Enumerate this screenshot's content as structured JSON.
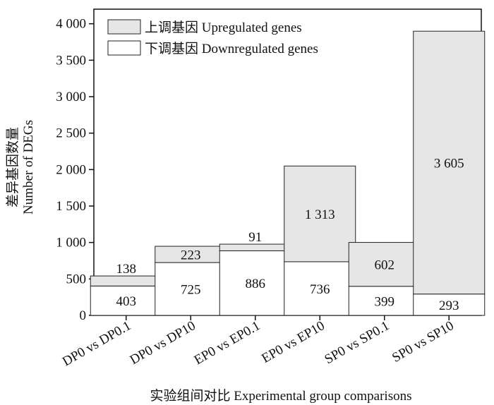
{
  "chart_data": {
    "type": "bar",
    "stacked": true,
    "categories": [
      "DP0 vs DP0.1",
      "DP0 vs DP10",
      "EP0 vs EP0.1",
      "EP0 vs EP10",
      "SP0 vs SP0.1",
      "SP0 vs SP10"
    ],
    "series": [
      {
        "name": "下调基因 Downregulated genes",
        "values": [
          403,
          725,
          886,
          736,
          399,
          293
        ],
        "labels": [
          "403",
          "725",
          "886",
          "736",
          "399",
          "293"
        ],
        "color": "#ffffff"
      },
      {
        "name": "上调基因 Upregulated genes",
        "values": [
          138,
          223,
          91,
          1313,
          602,
          3605
        ],
        "labels": [
          "138",
          "223",
          "91",
          "1 313",
          "602",
          "3 605"
        ],
        "color": "#e6e6e6"
      }
    ],
    "legend": [
      "上调基因 Upregulated genes",
      "下调基因 Downregulated genes"
    ],
    "legend_position": "top-left",
    "title": "",
    "xlabel": "实验组间对比 Experimental group comparisons",
    "ylabel_cn": "差异基因数量",
    "ylabel_en": "Number of DEGs",
    "ylim": [
      0,
      4200
    ],
    "yticks": [
      0,
      500,
      1000,
      1500,
      2000,
      2500,
      3000,
      3500,
      4000
    ],
    "ytick_labels": [
      "0",
      "500",
      "1 000",
      "1 500",
      "2 000",
      "2 500",
      "3 000",
      "3 500",
      "4 000"
    ],
    "grid": false
  }
}
